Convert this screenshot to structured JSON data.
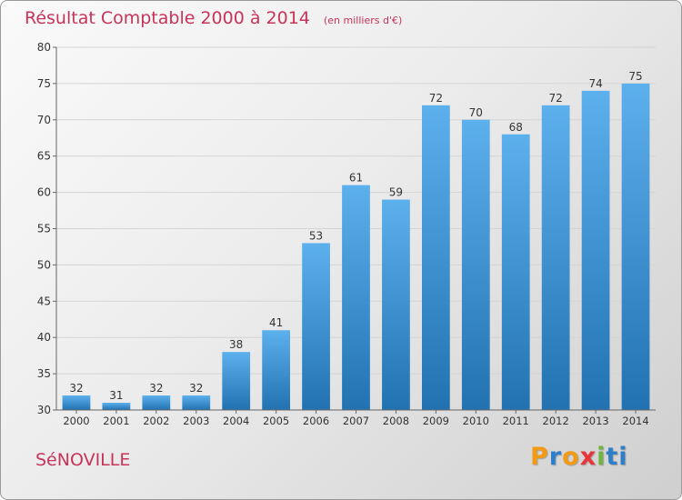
{
  "title": "Résultat Comptable 2000 à 2014",
  "unit": "(en milliers d'€)",
  "commune": "SéNOVILLE",
  "logo": "Proxiti",
  "colors": {
    "bar_top": "#5cb0ec",
    "bar_bottom": "#2272b2",
    "title": "#c8335a"
  },
  "chart_data": {
    "type": "bar",
    "title": "Résultat Comptable 2000 à 2014",
    "subtitle": "(en milliers d'€)",
    "categories": [
      "2000",
      "2001",
      "2002",
      "2003",
      "2004",
      "2005",
      "2006",
      "2007",
      "2008",
      "2009",
      "2010",
      "2011",
      "2012",
      "2013",
      "2014"
    ],
    "values": [
      32,
      31,
      32,
      32,
      38,
      41,
      53,
      61,
      59,
      72,
      70,
      68,
      72,
      74,
      75
    ],
    "ylim": [
      30,
      80
    ],
    "yticks": [
      30,
      35,
      40,
      45,
      50,
      55,
      60,
      65,
      70,
      75,
      80
    ],
    "grid": true,
    "data_labels": true
  }
}
